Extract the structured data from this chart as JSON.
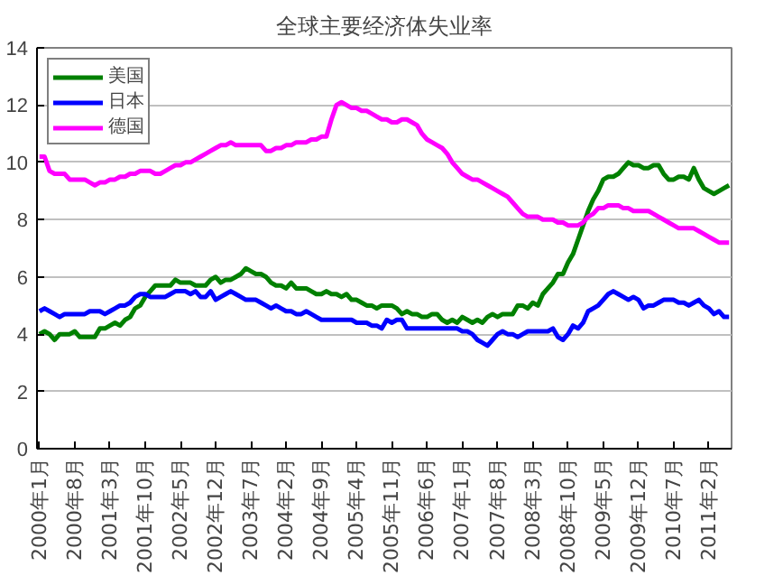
{
  "chart_data": {
    "type": "line",
    "title": "全球主要经济体失业率",
    "categories": [
      "2000年1月",
      null,
      null,
      null,
      null,
      null,
      null,
      "2000年8月",
      null,
      null,
      null,
      null,
      null,
      null,
      "2001年3月",
      null,
      null,
      null,
      null,
      null,
      null,
      "2001年10月",
      null,
      null,
      null,
      null,
      null,
      null,
      "2002年5月",
      null,
      null,
      null,
      null,
      null,
      null,
      "2002年12月",
      null,
      null,
      null,
      null,
      null,
      null,
      "2003年7月",
      null,
      null,
      null,
      null,
      null,
      null,
      "2004年2月",
      null,
      null,
      null,
      null,
      null,
      null,
      "2004年9月",
      null,
      null,
      null,
      null,
      null,
      null,
      "2005年4月",
      null,
      null,
      null,
      null,
      null,
      null,
      "2005年11月",
      null,
      null,
      null,
      null,
      null,
      null,
      "2006年6月",
      null,
      null,
      null,
      null,
      null,
      null,
      "2007年1月",
      null,
      null,
      null,
      null,
      null,
      null,
      "2007年8月",
      null,
      null,
      null,
      null,
      null,
      null,
      "2008年3月",
      null,
      null,
      null,
      null,
      null,
      null,
      "2008年10月",
      null,
      null,
      null,
      null,
      null,
      null,
      "2009年5月",
      null,
      null,
      null,
      null,
      null,
      null,
      "2009年12月",
      null,
      null,
      null,
      null,
      null,
      null,
      "2010年7月",
      null,
      null,
      null,
      null,
      null,
      null,
      "2011年2月",
      null,
      null,
      null,
      null
    ],
    "series": [
      {
        "name": "美国",
        "color": "#008000",
        "values": [
          4.0,
          4.1,
          4.0,
          3.8,
          4.0,
          4.0,
          4.0,
          4.1,
          3.9,
          3.9,
          3.9,
          3.9,
          4.2,
          4.2,
          4.3,
          4.4,
          4.3,
          4.5,
          4.6,
          4.9,
          5.0,
          5.3,
          5.5,
          5.7,
          5.7,
          5.7,
          5.7,
          5.9,
          5.8,
          5.8,
          5.8,
          5.7,
          5.7,
          5.7,
          5.9,
          6.0,
          5.8,
          5.9,
          5.9,
          6.0,
          6.1,
          6.3,
          6.2,
          6.1,
          6.1,
          6.0,
          5.8,
          5.7,
          5.7,
          5.6,
          5.8,
          5.6,
          5.6,
          5.6,
          5.5,
          5.4,
          5.4,
          5.5,
          5.4,
          5.4,
          5.3,
          5.4,
          5.2,
          5.2,
          5.1,
          5.0,
          5.0,
          4.9,
          5.0,
          5.0,
          5.0,
          4.9,
          4.7,
          4.8,
          4.7,
          4.7,
          4.6,
          4.6,
          4.7,
          4.7,
          4.5,
          4.4,
          4.5,
          4.4,
          4.6,
          4.5,
          4.4,
          4.5,
          4.4,
          4.6,
          4.7,
          4.6,
          4.7,
          4.7,
          4.7,
          5.0,
          5.0,
          4.9,
          5.1,
          5.0,
          5.4,
          5.6,
          5.8,
          6.1,
          6.1,
          6.5,
          6.8,
          7.3,
          7.8,
          8.3,
          8.7,
          9.0,
          9.4,
          9.5,
          9.5,
          9.6,
          9.8,
          10.0,
          9.9,
          9.9,
          9.8,
          9.8,
          9.9,
          9.9,
          9.6,
          9.4,
          9.4,
          9.5,
          9.5,
          9.4,
          9.8,
          9.4,
          9.1,
          9.0,
          8.9,
          9.0,
          9.1,
          9.2
        ]
      },
      {
        "name": "日本",
        "color": "#0000ff",
        "values": [
          4.8,
          4.9,
          4.8,
          4.7,
          4.6,
          4.7,
          4.7,
          4.7,
          4.7,
          4.7,
          4.8,
          4.8,
          4.8,
          4.7,
          4.8,
          4.9,
          5.0,
          5.0,
          5.1,
          5.3,
          5.4,
          5.4,
          5.3,
          5.3,
          5.3,
          5.3,
          5.4,
          5.5,
          5.5,
          5.5,
          5.4,
          5.5,
          5.3,
          5.3,
          5.5,
          5.2,
          5.3,
          5.4,
          5.5,
          5.4,
          5.3,
          5.2,
          5.2,
          5.2,
          5.1,
          5.0,
          4.9,
          5.0,
          4.9,
          4.8,
          4.8,
          4.7,
          4.7,
          4.8,
          4.7,
          4.6,
          4.5,
          4.5,
          4.5,
          4.5,
          4.5,
          4.5,
          4.5,
          4.4,
          4.4,
          4.4,
          4.3,
          4.3,
          4.2,
          4.5,
          4.4,
          4.5,
          4.5,
          4.2,
          4.2,
          4.2,
          4.2,
          4.2,
          4.2,
          4.2,
          4.2,
          4.2,
          4.2,
          4.2,
          4.1,
          4.1,
          4.0,
          3.8,
          3.7,
          3.6,
          3.8,
          4.0,
          4.1,
          4.0,
          4.0,
          3.9,
          4.0,
          4.1,
          4.1,
          4.1,
          4.1,
          4.1,
          4.2,
          3.9,
          3.8,
          4.0,
          4.3,
          4.2,
          4.4,
          4.8,
          4.9,
          5.0,
          5.2,
          5.4,
          5.5,
          5.4,
          5.3,
          5.2,
          5.3,
          5.2,
          4.9,
          5.0,
          5.0,
          5.1,
          5.2,
          5.2,
          5.2,
          5.1,
          5.1,
          5.0,
          5.1,
          5.2,
          5.0,
          4.9,
          4.7,
          4.8,
          4.6,
          4.6
        ]
      },
      {
        "name": "德国",
        "color": "#ff00ff",
        "values": [
          10.2,
          10.2,
          9.7,
          9.6,
          9.6,
          9.6,
          9.4,
          9.4,
          9.4,
          9.4,
          9.3,
          9.2,
          9.3,
          9.3,
          9.4,
          9.4,
          9.5,
          9.5,
          9.6,
          9.6,
          9.7,
          9.7,
          9.7,
          9.6,
          9.6,
          9.7,
          9.8,
          9.9,
          9.9,
          10.0,
          10.0,
          10.1,
          10.2,
          10.3,
          10.4,
          10.5,
          10.6,
          10.6,
          10.7,
          10.6,
          10.6,
          10.6,
          10.6,
          10.6,
          10.6,
          10.4,
          10.4,
          10.5,
          10.5,
          10.6,
          10.6,
          10.7,
          10.7,
          10.7,
          10.8,
          10.8,
          10.9,
          10.9,
          11.5,
          12.0,
          12.1,
          12.0,
          11.9,
          11.9,
          11.8,
          11.8,
          11.7,
          11.6,
          11.5,
          11.5,
          11.4,
          11.4,
          11.5,
          11.5,
          11.4,
          11.3,
          11.0,
          10.8,
          10.7,
          10.6,
          10.5,
          10.3,
          10.0,
          9.8,
          9.6,
          9.5,
          9.4,
          9.4,
          9.3,
          9.2,
          9.1,
          9.0,
          8.9,
          8.8,
          8.6,
          8.4,
          8.2,
          8.1,
          8.1,
          8.1,
          8.0,
          8.0,
          8.0,
          7.9,
          7.9,
          7.8,
          7.8,
          7.8,
          7.9,
          8.1,
          8.2,
          8.4,
          8.4,
          8.5,
          8.5,
          8.5,
          8.4,
          8.4,
          8.3,
          8.3,
          8.3,
          8.3,
          8.2,
          8.1,
          8.0,
          7.9,
          7.8,
          7.7,
          7.7,
          7.7,
          7.7,
          7.6,
          7.5,
          7.4,
          7.3,
          7.2,
          7.2,
          7.2
        ]
      }
    ],
    "ylim": [
      0,
      14
    ],
    "yticks": [
      0,
      2,
      4,
      6,
      8,
      10,
      12,
      14
    ],
    "grid": "y",
    "legend": "top left"
  }
}
